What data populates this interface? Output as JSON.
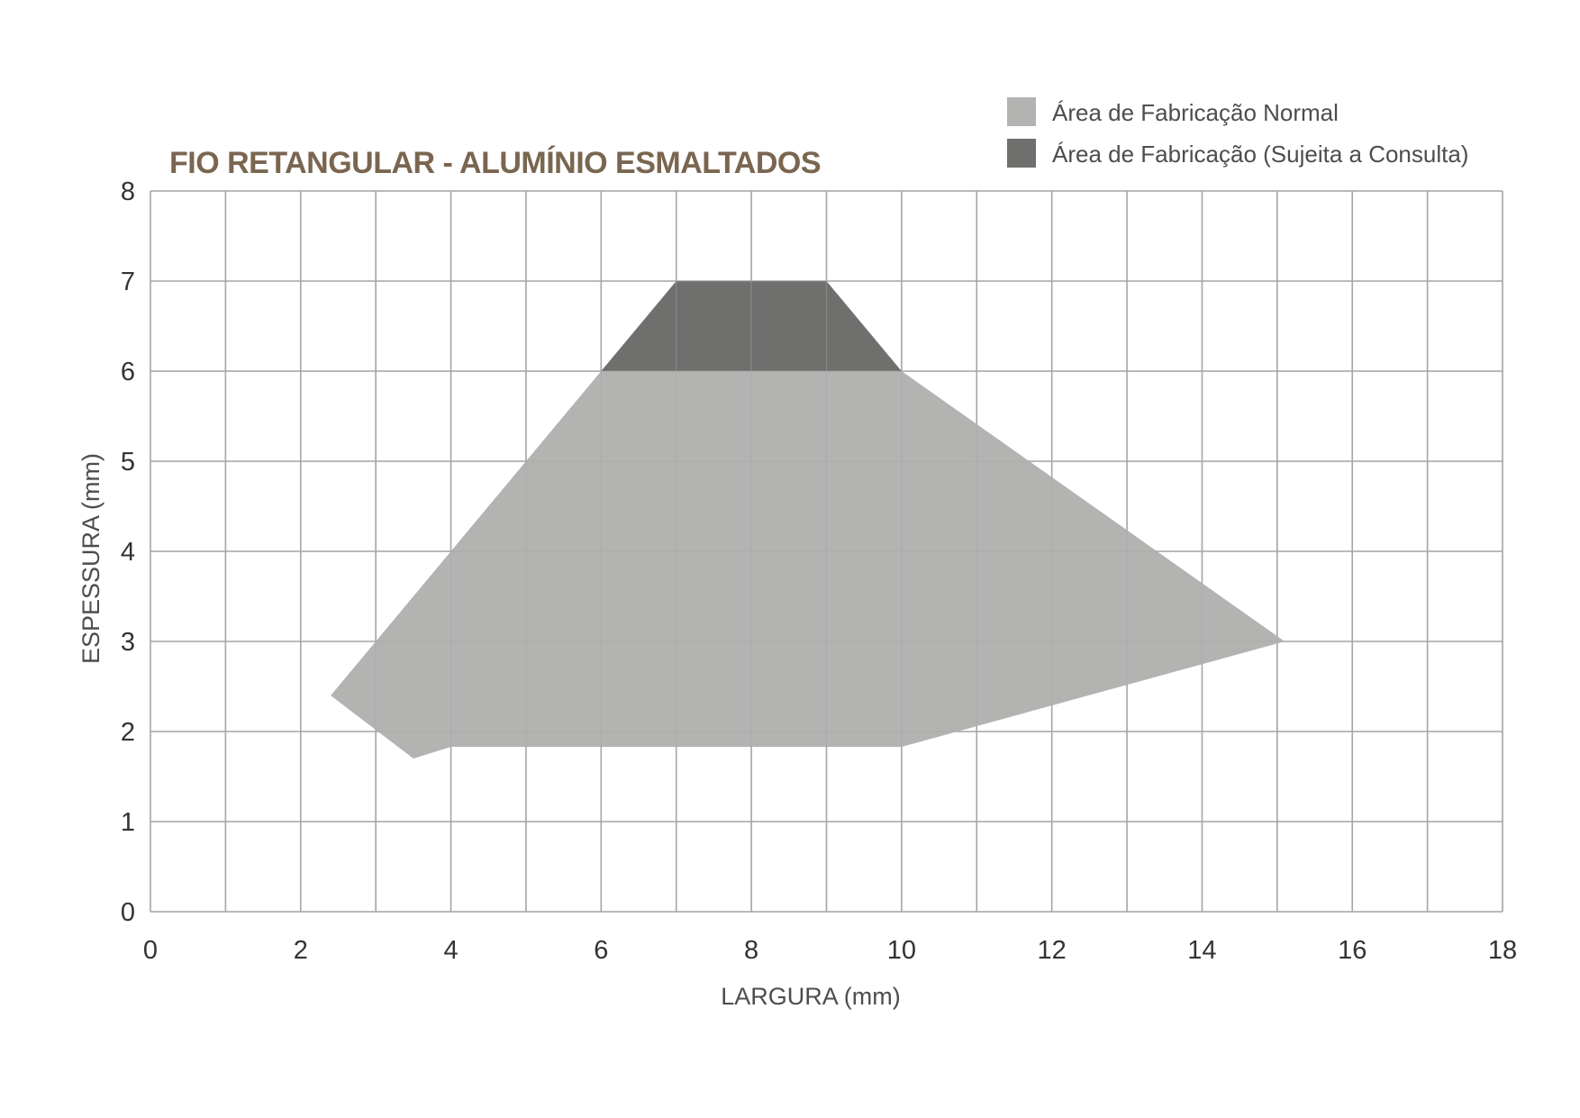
{
  "chart_data": {
    "type": "area",
    "title": "FIO RETANGULAR - ALUMÍNIO ESMALTADOS",
    "xlabel": "LARGURA (mm)",
    "ylabel": "ESPESSURA (mm)",
    "xlim": [
      0,
      18
    ],
    "ylim": [
      0,
      8
    ],
    "x_ticks": [
      "0",
      "2",
      "4",
      "6",
      "8",
      "10",
      "12",
      "14",
      "16",
      "18"
    ],
    "y_ticks": [
      "0",
      "1",
      "2",
      "3",
      "4",
      "5",
      "6",
      "7",
      "8"
    ],
    "grid": true,
    "legend_position": "top-right",
    "series": [
      {
        "name": "Área de Fabricação Normal",
        "color": "#b3b3b2",
        "points": [
          [
            2.4,
            2.4
          ],
          [
            6.0,
            6.0
          ],
          [
            10.0,
            6.0
          ],
          [
            15.1,
            3.0
          ],
          [
            10.0,
            1.83
          ],
          [
            4.0,
            1.83
          ],
          [
            3.5,
            1.7
          ]
        ]
      },
      {
        "name": "Área de Fabricação (Sujeita a Consulta)",
        "color": "#6f6f6e",
        "points": [
          [
            6.0,
            6.0
          ],
          [
            7.0,
            7.0
          ],
          [
            9.0,
            7.0
          ],
          [
            10.0,
            6.0
          ]
        ]
      }
    ],
    "title_color": "#7a6650",
    "grid_color": "#a6a6a6"
  }
}
